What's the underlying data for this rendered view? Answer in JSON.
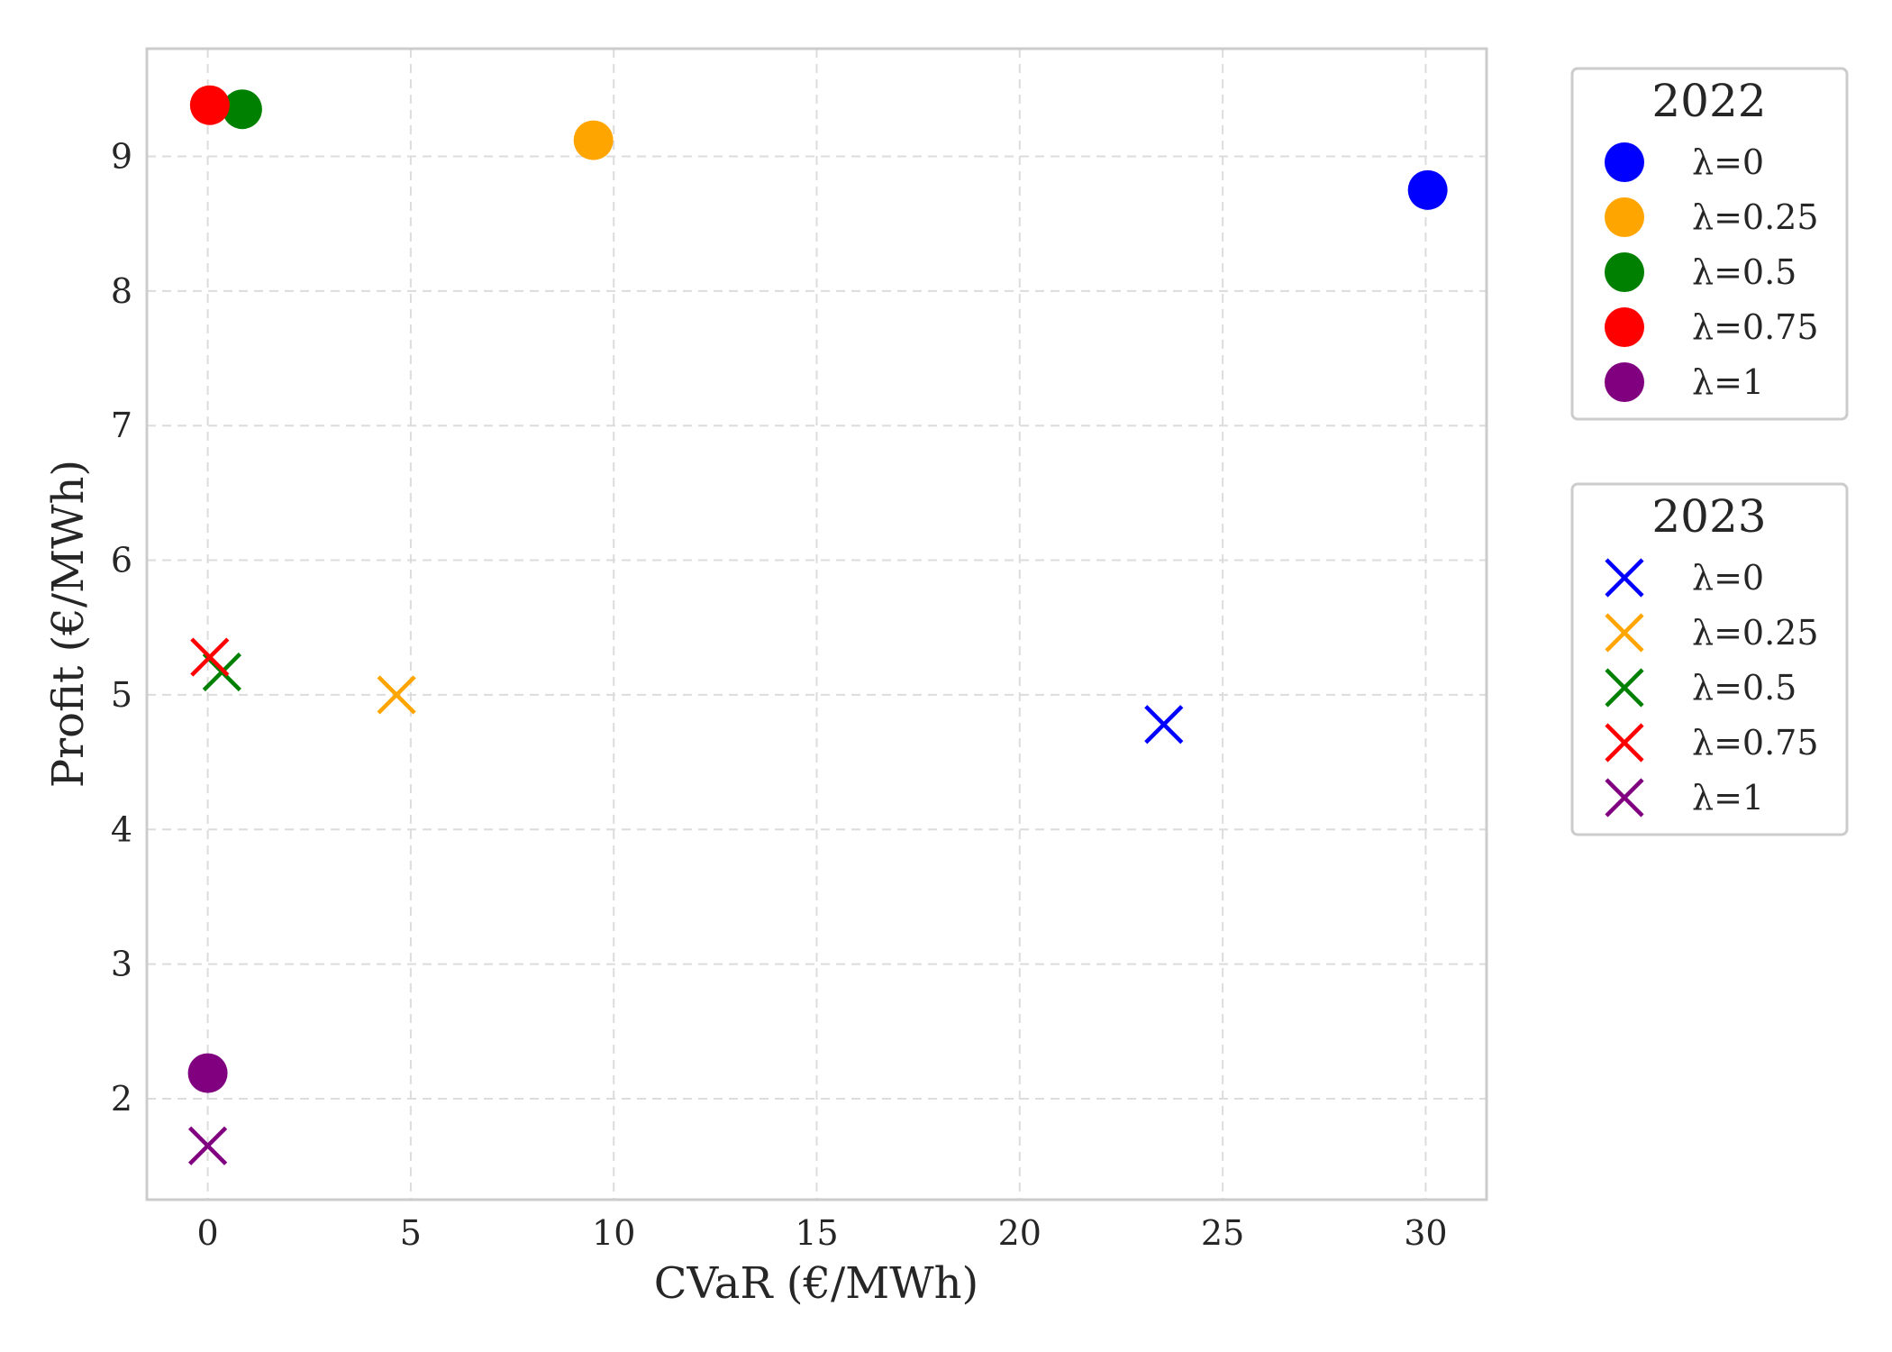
{
  "chart_data": {
    "type": "scatter",
    "title": "",
    "xlabel": "CVaR (€/MWh)",
    "ylabel": "Profit (€/MWh)",
    "xlim": [
      -1.5,
      31.5
    ],
    "ylim": [
      1.25,
      9.8
    ],
    "xticks": [
      0,
      5,
      10,
      15,
      20,
      25,
      30
    ],
    "yticks": [
      2,
      3,
      4,
      5,
      6,
      7,
      8,
      9
    ],
    "grid": true,
    "legend_placement": "outside-right",
    "colors": {
      "λ=0": "#0000ff",
      "λ=0.25": "#ffa500",
      "λ=0.5": "#008000",
      "λ=0.75": "#ff0000",
      "λ=1": "#800080"
    },
    "groups": [
      {
        "name": "2022",
        "marker": "circle",
        "series": [
          {
            "name": "λ=0",
            "color": "#0000ff",
            "x": 30.05,
            "y": 8.75
          },
          {
            "name": "λ=0.25",
            "color": "#ffa500",
            "x": 9.5,
            "y": 9.12
          },
          {
            "name": "λ=0.5",
            "color": "#008000",
            "x": 0.85,
            "y": 9.35
          },
          {
            "name": "λ=0.75",
            "color": "#ff0000",
            "x": 0.05,
            "y": 9.38
          },
          {
            "name": "λ=1",
            "color": "#800080",
            "x": 0.0,
            "y": 2.19
          }
        ]
      },
      {
        "name": "2023",
        "marker": "x",
        "series": [
          {
            "name": "λ=0",
            "color": "#0000ff",
            "x": 23.55,
            "y": 4.78
          },
          {
            "name": "λ=0.25",
            "color": "#ffa500",
            "x": 4.65,
            "y": 5.0
          },
          {
            "name": "λ=0.5",
            "color": "#008000",
            "x": 0.35,
            "y": 5.17
          },
          {
            "name": "λ=0.75",
            "color": "#ff0000",
            "x": 0.05,
            "y": 5.28
          },
          {
            "name": "λ=1",
            "color": "#800080",
            "x": 0.0,
            "y": 1.65
          }
        ]
      }
    ]
  }
}
